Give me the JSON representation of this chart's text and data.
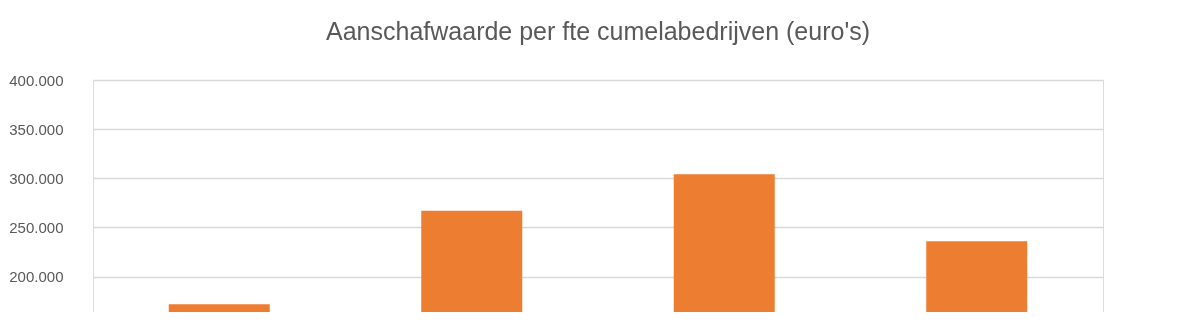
{
  "chart_data": {
    "type": "bar",
    "title": "Aanschafwaarde per fte cumelabedrijven (euro's)",
    "categories": [
      null,
      null,
      null,
      null
    ],
    "values": [
      172000,
      267000,
      304000,
      236000
    ],
    "color": "#ed7d31",
    "ylim": [
      164000,
      400000
    ],
    "yticks": [
      {
        "value": 200000,
        "label": "200.000"
      },
      {
        "value": 250000,
        "label": "250.000"
      },
      {
        "value": 300000,
        "label": "300.000"
      },
      {
        "value": 350000,
        "label": "350.000"
      },
      {
        "value": 400000,
        "label": "400.000"
      }
    ],
    "grid": "y",
    "tick_labels": "y"
  }
}
